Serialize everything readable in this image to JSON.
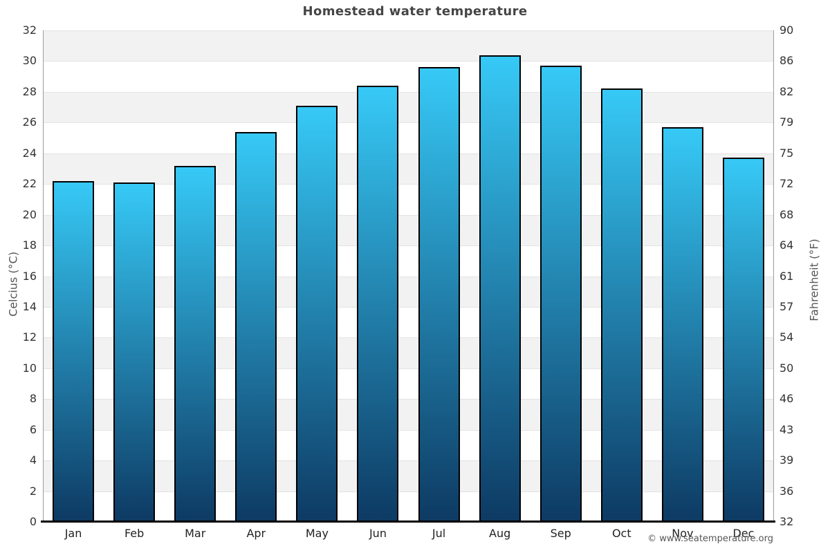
{
  "title": "Homestead water temperature",
  "credit": "© www.seatemperature.org",
  "chart_data": {
    "type": "bar",
    "title": "Homestead water temperature",
    "categories": [
      "Jan",
      "Feb",
      "Mar",
      "Apr",
      "May",
      "Jun",
      "Jul",
      "Aug",
      "Sep",
      "Oct",
      "Nov",
      "Dec"
    ],
    "values": [
      22.2,
      22.1,
      23.2,
      25.4,
      27.1,
      28.4,
      29.6,
      30.4,
      29.7,
      28.2,
      25.7,
      23.7
    ],
    "unit": "°C",
    "ylabel_left": "Celcius (°C)",
    "ylabel_right": "Fahrenheit (°F)",
    "ylim_celsius": [
      0,
      32
    ],
    "yticks_celsius": [
      0,
      2,
      4,
      6,
      8,
      10,
      12,
      14,
      16,
      18,
      20,
      22,
      24,
      26,
      28,
      30,
      32
    ],
    "yticks_fahrenheit": [
      32,
      36,
      39,
      43,
      46,
      50,
      54,
      57,
      61,
      64,
      68,
      72,
      75,
      79,
      82,
      86,
      90
    ],
    "grid": "horizontal, alternating shaded bands every 2°C",
    "legend": "none",
    "colors": {
      "bar_gradient_top": "#37c9f6",
      "bar_gradient_bottom": "#0d3a63",
      "bar_border": "#000000",
      "band_shaded": "#f2f2f2",
      "band_plain": "#ffffff",
      "gridline": "#e3e3e3",
      "axis_line": "#9b9b9b",
      "baseline": "#000000"
    }
  }
}
